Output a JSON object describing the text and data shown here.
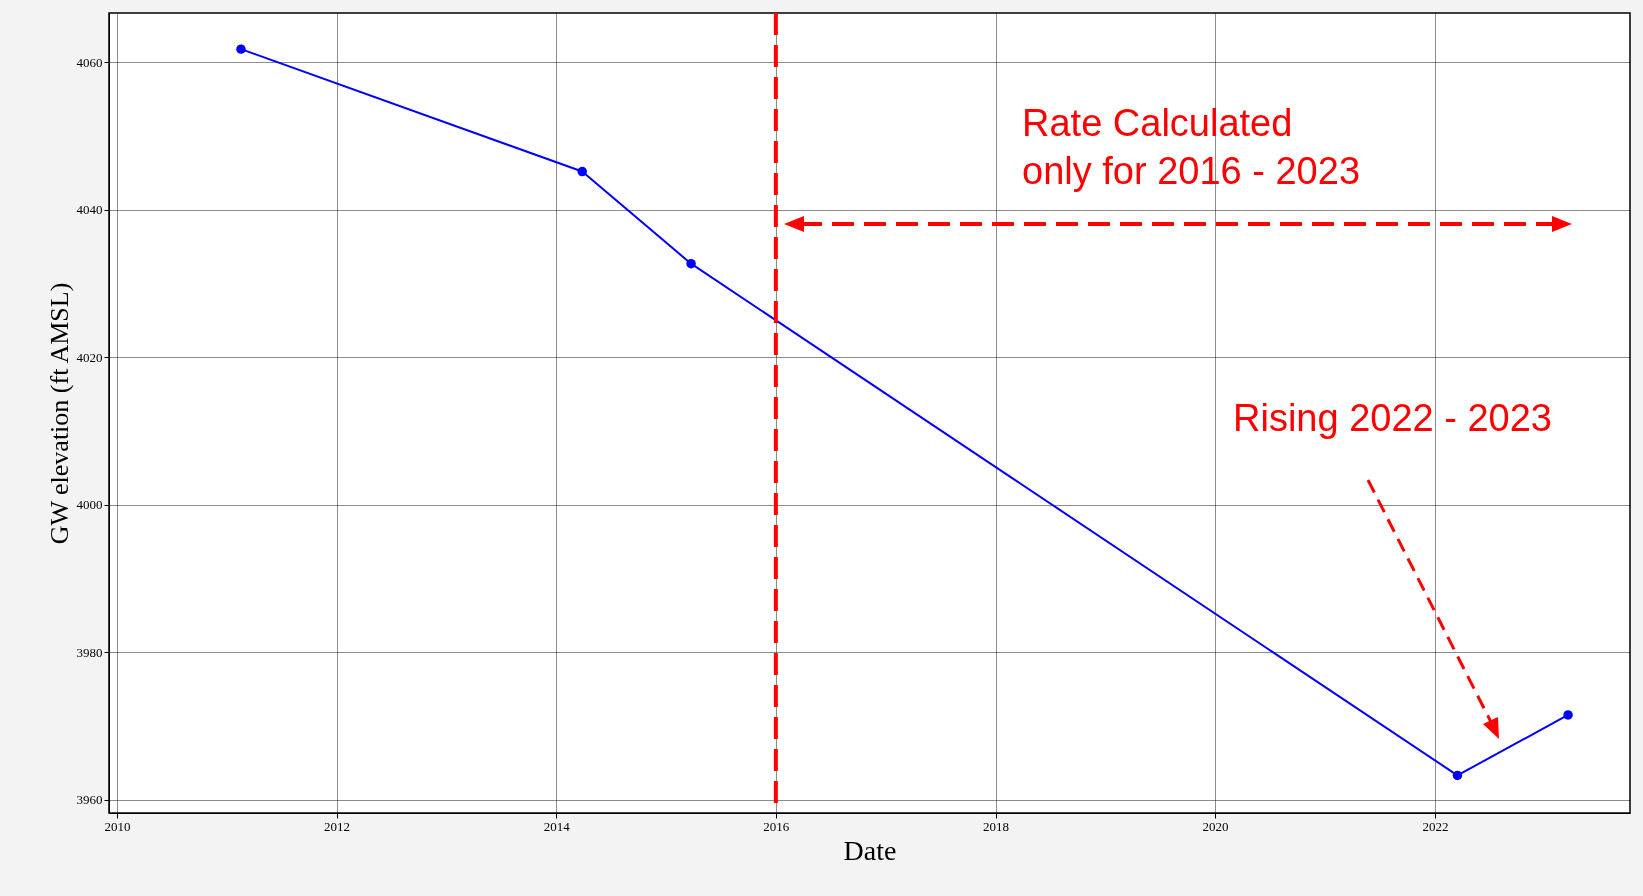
{
  "chart_data": {
    "type": "line",
    "xlabel": "Date",
    "ylabel": "GW elevation (ft AMSL)",
    "x": [
      "2011-02-17",
      "2014-03-28",
      "2015-03-25",
      "2022-03-17",
      "2023-03-20"
    ],
    "series": [
      {
        "color": "#0000ff",
        "values": [
          4061.8,
          4045.2,
          4032.7,
          3963.3,
          3971.5
        ]
      }
    ],
    "xlim": [
      "2009-12-05",
      "2023-10-12"
    ],
    "xticks": [
      "2010",
      "2012",
      "2014",
      "2016",
      "2018",
      "2020",
      "2022"
    ],
    "ylim": [
      3958.2,
      4066.7
    ],
    "yticks": [
      3960,
      3980,
      4000,
      4020,
      4040,
      4060
    ],
    "grid": true,
    "marker": "circle",
    "line_style": "solid",
    "ref_lines": [
      {
        "axis": "x",
        "value": "2016",
        "color": "#ff0000",
        "line_style": "dashed"
      }
    ],
    "annotations": [
      "Rate Calculated\nonly for 2016 - 2023",
      "Rising 2022 - 2023"
    ]
  }
}
